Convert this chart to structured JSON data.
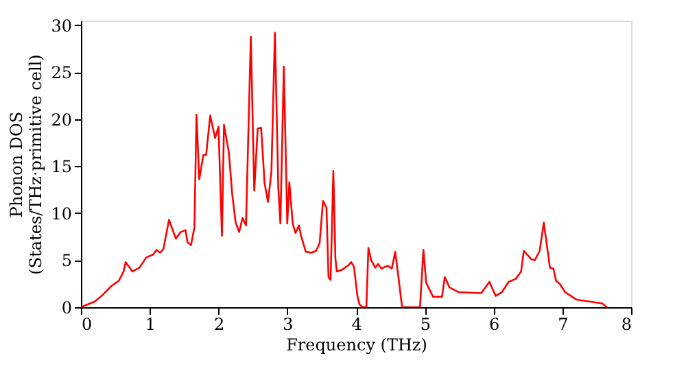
{
  "chart_data": {
    "type": "line",
    "xlabel": "Frequency (THz)",
    "ylabel": "Phonon DOS\n(States/THz·primitive cell)",
    "xlim": [
      0,
      8
    ],
    "ylim": [
      0,
      30.5
    ],
    "xticks": [
      0,
      1,
      2,
      3,
      4,
      5,
      6,
      7,
      8
    ],
    "yticks": [
      0,
      5,
      10,
      15,
      20,
      25,
      30
    ],
    "grid": false,
    "legend": false,
    "marker": "none",
    "line_style": "solid",
    "series": [
      {
        "color": "#ff0000",
        "x": [
          0,
          0.2,
          0.3,
          0.45,
          0.55,
          0.62,
          0.65,
          0.75,
          0.85,
          0.95,
          1.05,
          1.1,
          1.15,
          1.2,
          1.28,
          1.38,
          1.45,
          1.52,
          1.55,
          1.6,
          1.65,
          1.68,
          1.72,
          1.78,
          1.82,
          1.88,
          1.95,
          2.0,
          2.05,
          2.08,
          2.15,
          2.2,
          2.25,
          2.3,
          2.35,
          2.4,
          2.47,
          2.52,
          2.57,
          2.62,
          2.67,
          2.72,
          2.77,
          2.82,
          2.87,
          2.9,
          2.95,
          3.0,
          3.03,
          3.08,
          3.12,
          3.17,
          3.2,
          3.27,
          3.35,
          3.42,
          3.47,
          3.52,
          3.57,
          3.6,
          3.63,
          3.67,
          3.7,
          3.72,
          3.8,
          3.88,
          3.93,
          3.97,
          4.02,
          4.05,
          4.1,
          4.15,
          4.18,
          4.22,
          4.28,
          4.32,
          4.37,
          4.42,
          4.47,
          4.52,
          4.57,
          4.62,
          4.67,
          4.93,
          4.98,
          5.02,
          5.12,
          5.25,
          5.29,
          5.36,
          5.49,
          5.82,
          5.94,
          6.03,
          6.12,
          6.22,
          6.32,
          6.4,
          6.44,
          6.55,
          6.6,
          6.67,
          6.73,
          6.82,
          6.87,
          6.91,
          6.96,
          7.04,
          7.21,
          7.58,
          7.65
        ],
        "values": [
          0,
          0.6,
          1.2,
          2.3,
          2.8,
          3.8,
          4.8,
          3.8,
          4.2,
          5.3,
          5.6,
          6.1,
          5.8,
          6.2,
          9.3,
          7.3,
          8.0,
          8.2,
          6.9,
          6.6,
          8.5,
          20.5,
          13.6,
          16.2,
          16.2,
          20.4,
          18.0,
          19.2,
          7.6,
          19.4,
          16.5,
          12,
          9.0,
          8.0,
          9.5,
          8.7,
          28.8,
          12.4,
          19.0,
          19.1,
          13.2,
          11.2,
          14.5,
          29.2,
          12.7,
          8.9,
          25.6,
          8.9,
          13.3,
          8.9,
          7.9,
          8.7,
          7.6,
          5.9,
          5.8,
          6.0,
          6.8,
          11.3,
          10.6,
          3.2,
          2.9,
          14.5,
          5.2,
          3.8,
          4.0,
          4.4,
          4.8,
          4.3,
          1.2,
          0.3,
          0,
          0,
          6.3,
          5.0,
          4.2,
          4.6,
          4.1,
          4.3,
          4.4,
          4.1,
          5.9,
          3.0,
          0,
          0,
          6.1,
          2.6,
          1.1,
          1.1,
          3.2,
          2.1,
          1.6,
          1.5,
          2.7,
          1.2,
          1.6,
          2.7,
          3.0,
          3.8,
          6.0,
          5.1,
          5.0,
          6.0,
          9.0,
          4.2,
          4.1,
          2.8,
          2.5,
          1.6,
          0.8,
          0.4,
          0
        ]
      }
    ]
  }
}
